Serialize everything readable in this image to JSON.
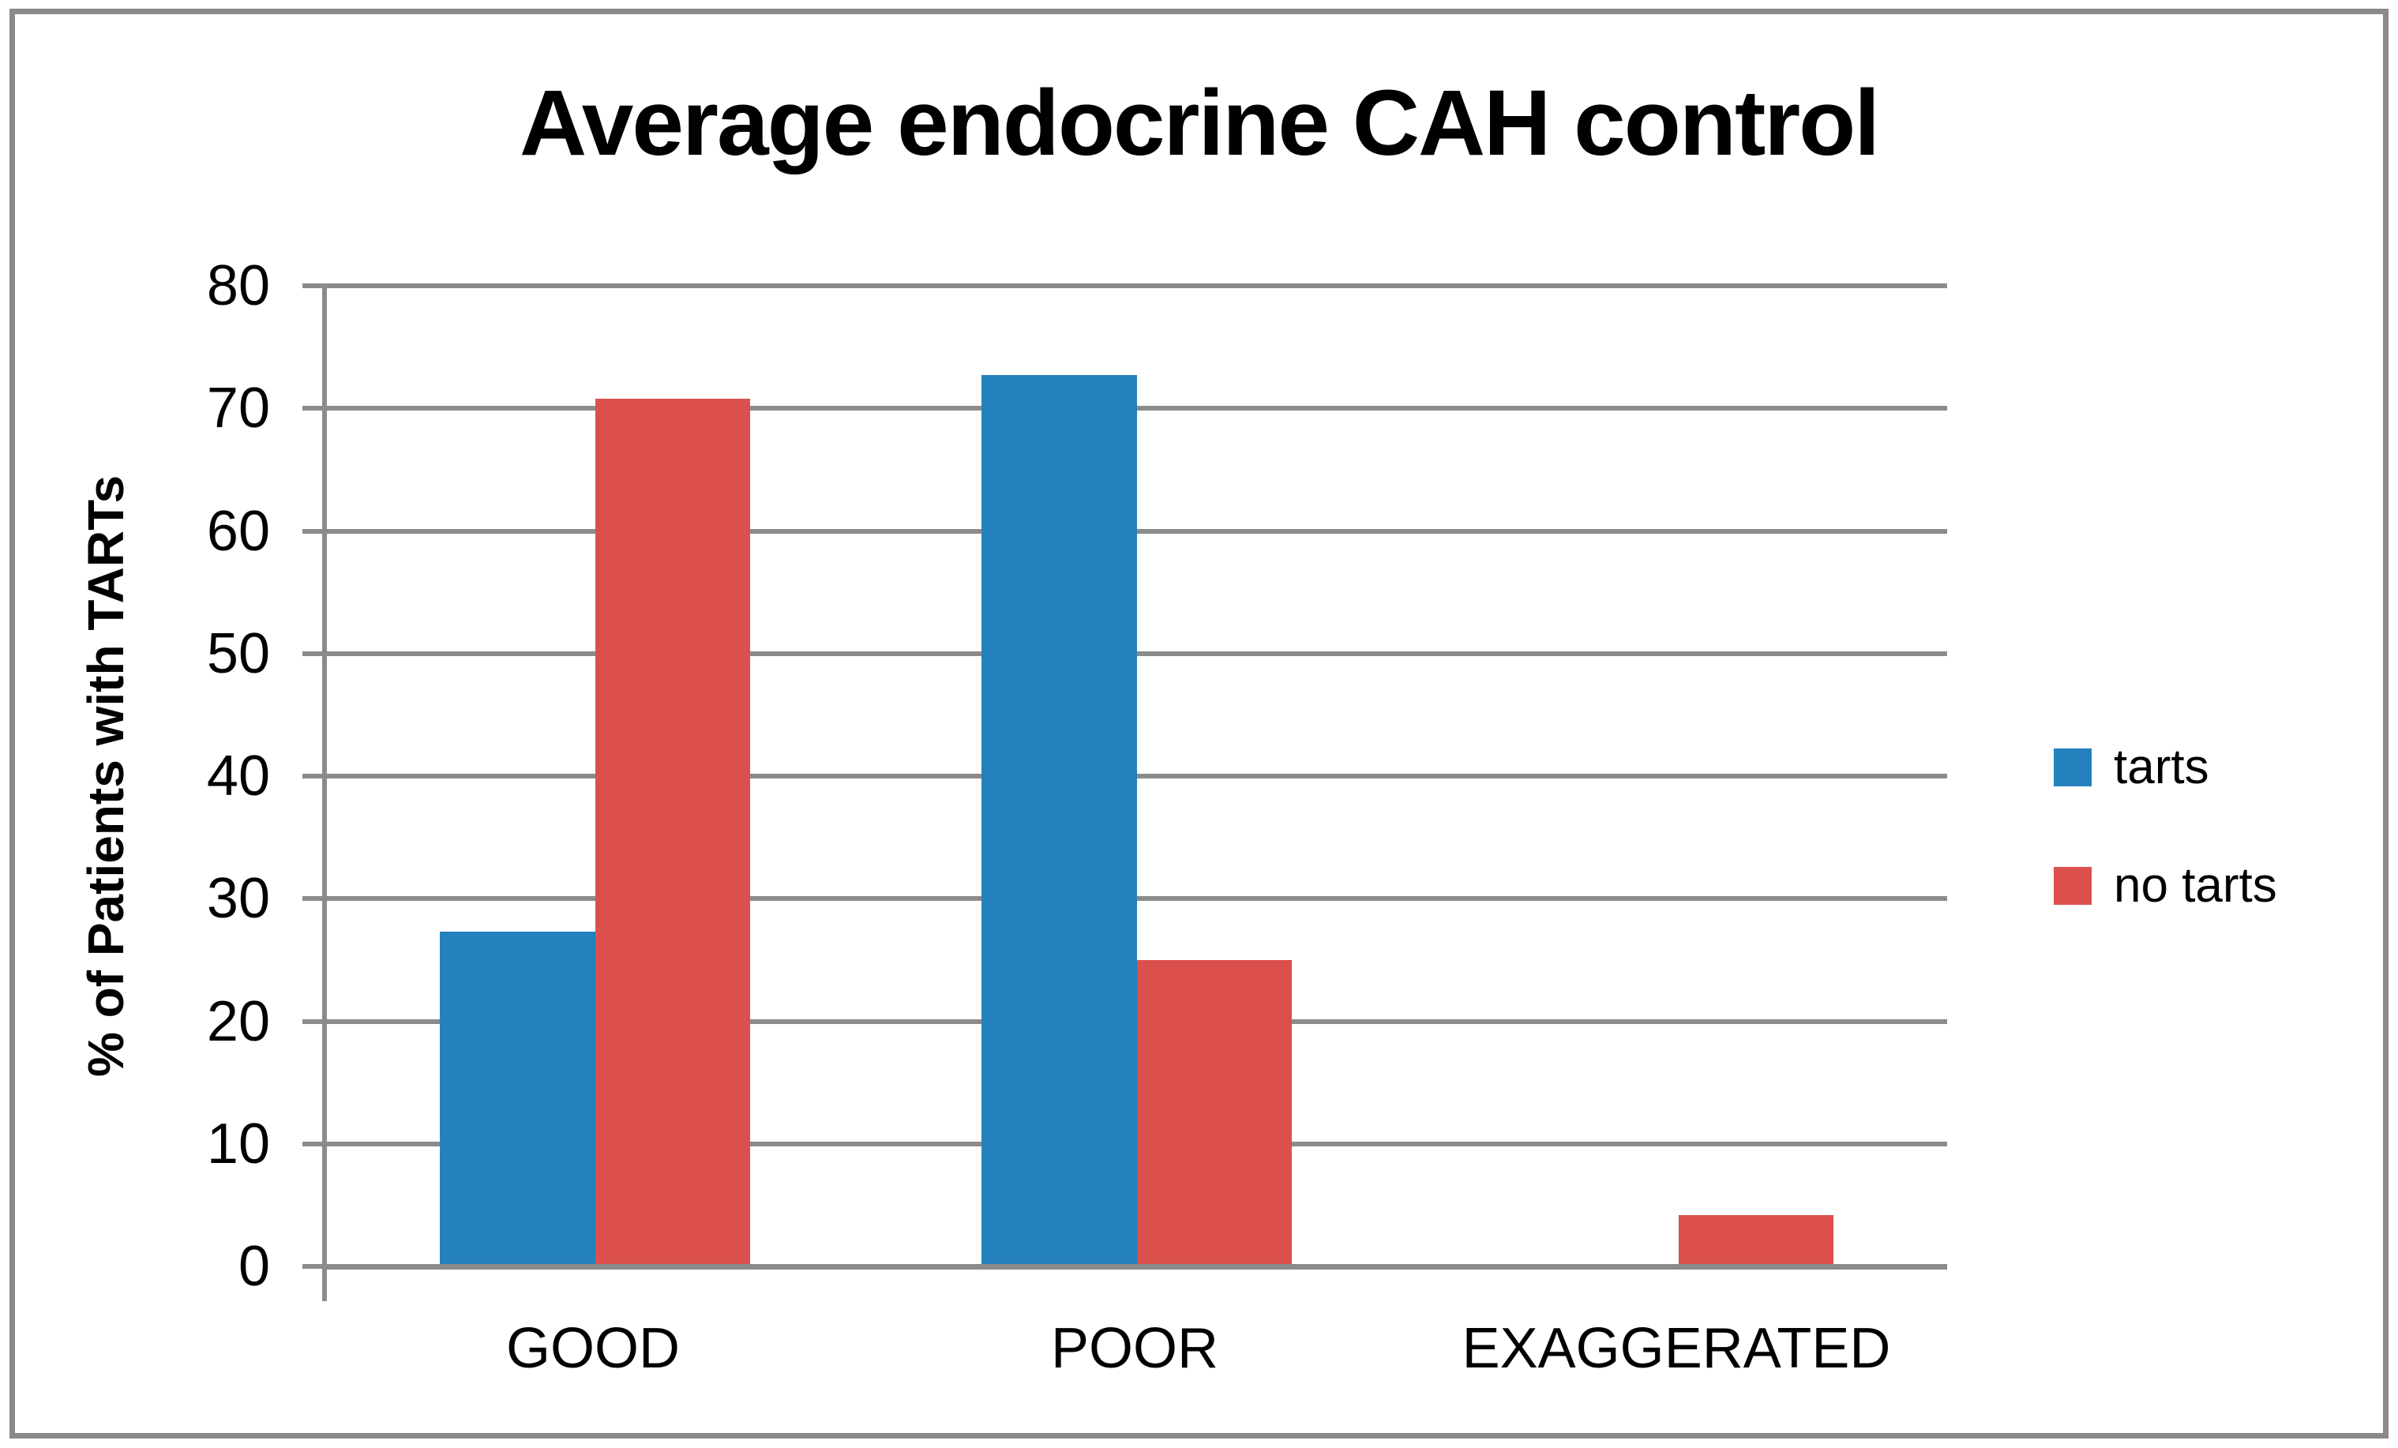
{
  "figure": {
    "background": "#ffffff",
    "border_color": "#8a8a8a"
  },
  "chart_data": {
    "type": "bar",
    "title": "Average endocrine CAH control",
    "xlabel": "",
    "ylabel": "% of Patients with TARTs",
    "categories": [
      "GOOD",
      "POOR",
      "EXAGGERATED"
    ],
    "series": [
      {
        "name": "tarts",
        "color": "#2580BE",
        "values": [
          27.3,
          72.7,
          0
        ]
      },
      {
        "name": "no tarts",
        "color": "#DB504D",
        "values": [
          70.8,
          25,
          4.2
        ]
      }
    ],
    "ylim": [
      0,
      80
    ],
    "yticks": [
      0,
      10,
      20,
      30,
      40,
      50,
      60,
      70,
      80
    ],
    "grid": true,
    "gridline_color": "#8B8B8B",
    "axis_color": "#8B8B8B",
    "text_color": "#000000",
    "legend_position": "right"
  }
}
